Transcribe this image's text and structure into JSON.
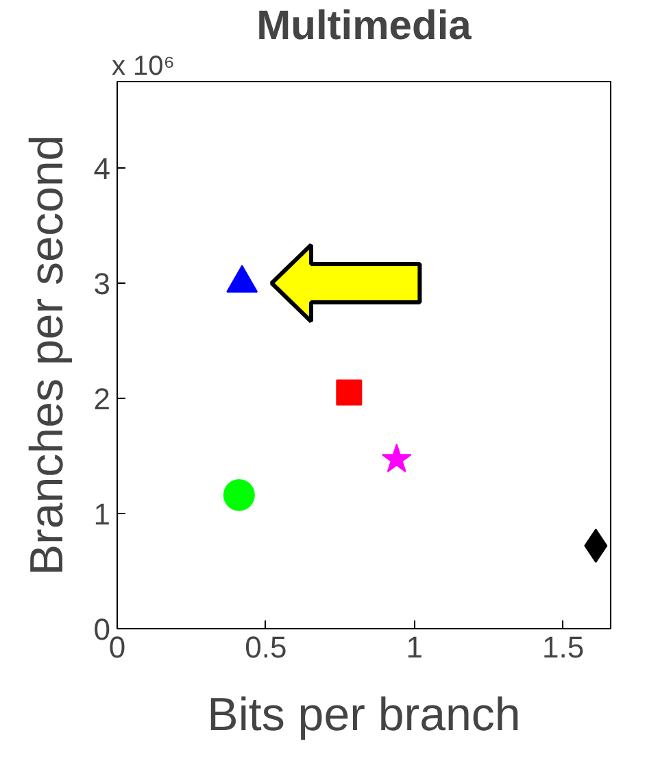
{
  "chart_data": {
    "type": "scatter",
    "title": "Multimedia",
    "xlabel": "Bits per branch",
    "ylabel": "Branches per second",
    "annotations": [
      "x 10⁶"
    ],
    "xlim": [
      0,
      1.66
    ],
    "ylim": [
      0,
      4.75
    ],
    "xticks": [
      0,
      0.5,
      1,
      1.5
    ],
    "yticks": [
      0,
      1,
      2,
      3,
      4
    ],
    "grid": false,
    "series": [
      {
        "color": "#0000ff",
        "marker": "triangle",
        "x": [
          0.42
        ],
        "values": [
          3.0
        ]
      },
      {
        "color": "#ff0000",
        "marker": "square",
        "x": [
          0.78
        ],
        "values": [
          2.05
        ]
      },
      {
        "color": "#ff00ff",
        "marker": "star",
        "x": [
          0.94
        ],
        "values": [
          1.47
        ]
      },
      {
        "color": "#00ff00",
        "marker": "circle",
        "x": [
          0.41
        ],
        "values": [
          1.16
        ]
      },
      {
        "color": "#000000",
        "marker": "diamond",
        "x": [
          1.61
        ],
        "values": [
          0.72
        ]
      }
    ]
  }
}
